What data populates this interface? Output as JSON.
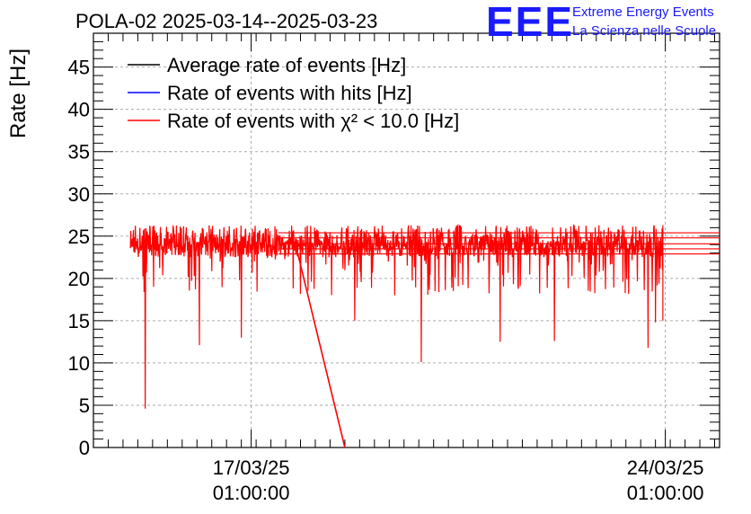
{
  "chart_data": {
    "type": "line",
    "title": "POLA-02 2025-03-14--2025-03-23",
    "ylabel": "Rate [Hz]",
    "xlabel": "",
    "ylim": [
      0,
      49
    ],
    "yticks": [
      0,
      5,
      10,
      15,
      20,
      25,
      30,
      35,
      40,
      45
    ],
    "xlim": [
      "2025-03-14 09:00",
      "2025-03-24 23:00"
    ],
    "xticks": [
      {
        "time": "2025-03-17 01:00",
        "date": "17/03/25",
        "clock": "01:00:00"
      },
      {
        "time": "2025-03-24 01:00",
        "date": "24/03/25",
        "clock": "01:00:00"
      }
    ],
    "grid": true,
    "legend_position": "top-left",
    "series": [
      {
        "name": "Average rate of events [Hz]",
        "color": "#000000"
      },
      {
        "name": "Rate of events with hits [Hz]",
        "color": "#0000ff"
      },
      {
        "name": "Rate of events with χ² < 10.0 [Hz]",
        "color": "#ff0000",
        "data_range": [
          "2025-03-15 00:00",
          "2025-03-24 00:00"
        ],
        "typical_value": 24.2,
        "noise_band": [
          22.5,
          26.3
        ],
        "dips": [
          {
            "time": "2025-03-15 06:00",
            "value": 4.6
          },
          {
            "time": "2025-03-16 04:00",
            "value": 12.1
          },
          {
            "time": "2025-03-16 21:00",
            "value": 13.0
          },
          {
            "time": "2025-03-18 19:00",
            "value": 15.0
          },
          {
            "time": "2025-03-19 22:00",
            "value": 10.1
          },
          {
            "time": "2025-03-21 06:00",
            "value": 12.5
          },
          {
            "time": "2025-03-22 04:00",
            "value": 12.6
          },
          {
            "time": "2025-03-23 18:00",
            "value": 11.8
          },
          {
            "time": "2025-03-23 21:00",
            "value": 14.8
          }
        ],
        "drop_segment": [
          {
            "time": "2025-03-17 19:00",
            "value": 24.0
          },
          {
            "time": "2025-03-18 15:00",
            "value": 0
          }
        ]
      }
    ]
  },
  "logo": {
    "letters": "EEE",
    "line1": "Extreme Energy Events",
    "line2": "La Scienza nelle Scuole"
  }
}
